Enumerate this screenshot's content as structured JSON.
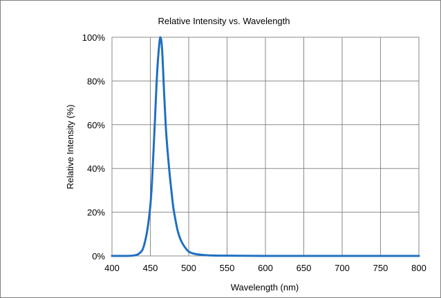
{
  "chart_data": {
    "type": "line",
    "title": "Relative Intensity vs. Wavelength",
    "xlabel": "Wavelength (nm)",
    "ylabel": "Relative Intensity (%)",
    "xlim": [
      400,
      800
    ],
    "ylim": [
      0,
      100
    ],
    "x_ticks": [
      400,
      450,
      500,
      550,
      600,
      650,
      700,
      750,
      800
    ],
    "y_ticks": [
      0,
      20,
      40,
      60,
      80,
      100
    ],
    "x_tick_labels": [
      "400",
      "450",
      "500",
      "550",
      "600",
      "650",
      "700",
      "750",
      "800"
    ],
    "y_tick_labels": [
      "0%",
      "20%",
      "40%",
      "60%",
      "80%",
      "100%"
    ],
    "grid": true,
    "legend": "none",
    "series_color": "#1f6fc0",
    "series": [
      {
        "x": [
          400,
          420,
          430,
          435,
          440,
          444,
          447,
          450,
          452,
          454,
          456,
          458,
          460,
          462,
          463,
          464,
          465,
          466,
          468,
          470,
          472,
          475,
          478,
          480,
          483,
          486,
          490,
          495,
          500,
          505,
          510,
          520,
          530,
          550,
          600,
          650,
          700,
          750,
          800
        ],
        "y": [
          0,
          0,
          0.3,
          1,
          3,
          8,
          14,
          23,
          33,
          47,
          62,
          78,
          90,
          98,
          100,
          99,
          96,
          90,
          74,
          60,
          50,
          38,
          28,
          22,
          16,
          11,
          7,
          4,
          2,
          1.2,
          0.8,
          0.4,
          0.2,
          0.1,
          0,
          0,
          0,
          0,
          0
        ]
      }
    ]
  }
}
